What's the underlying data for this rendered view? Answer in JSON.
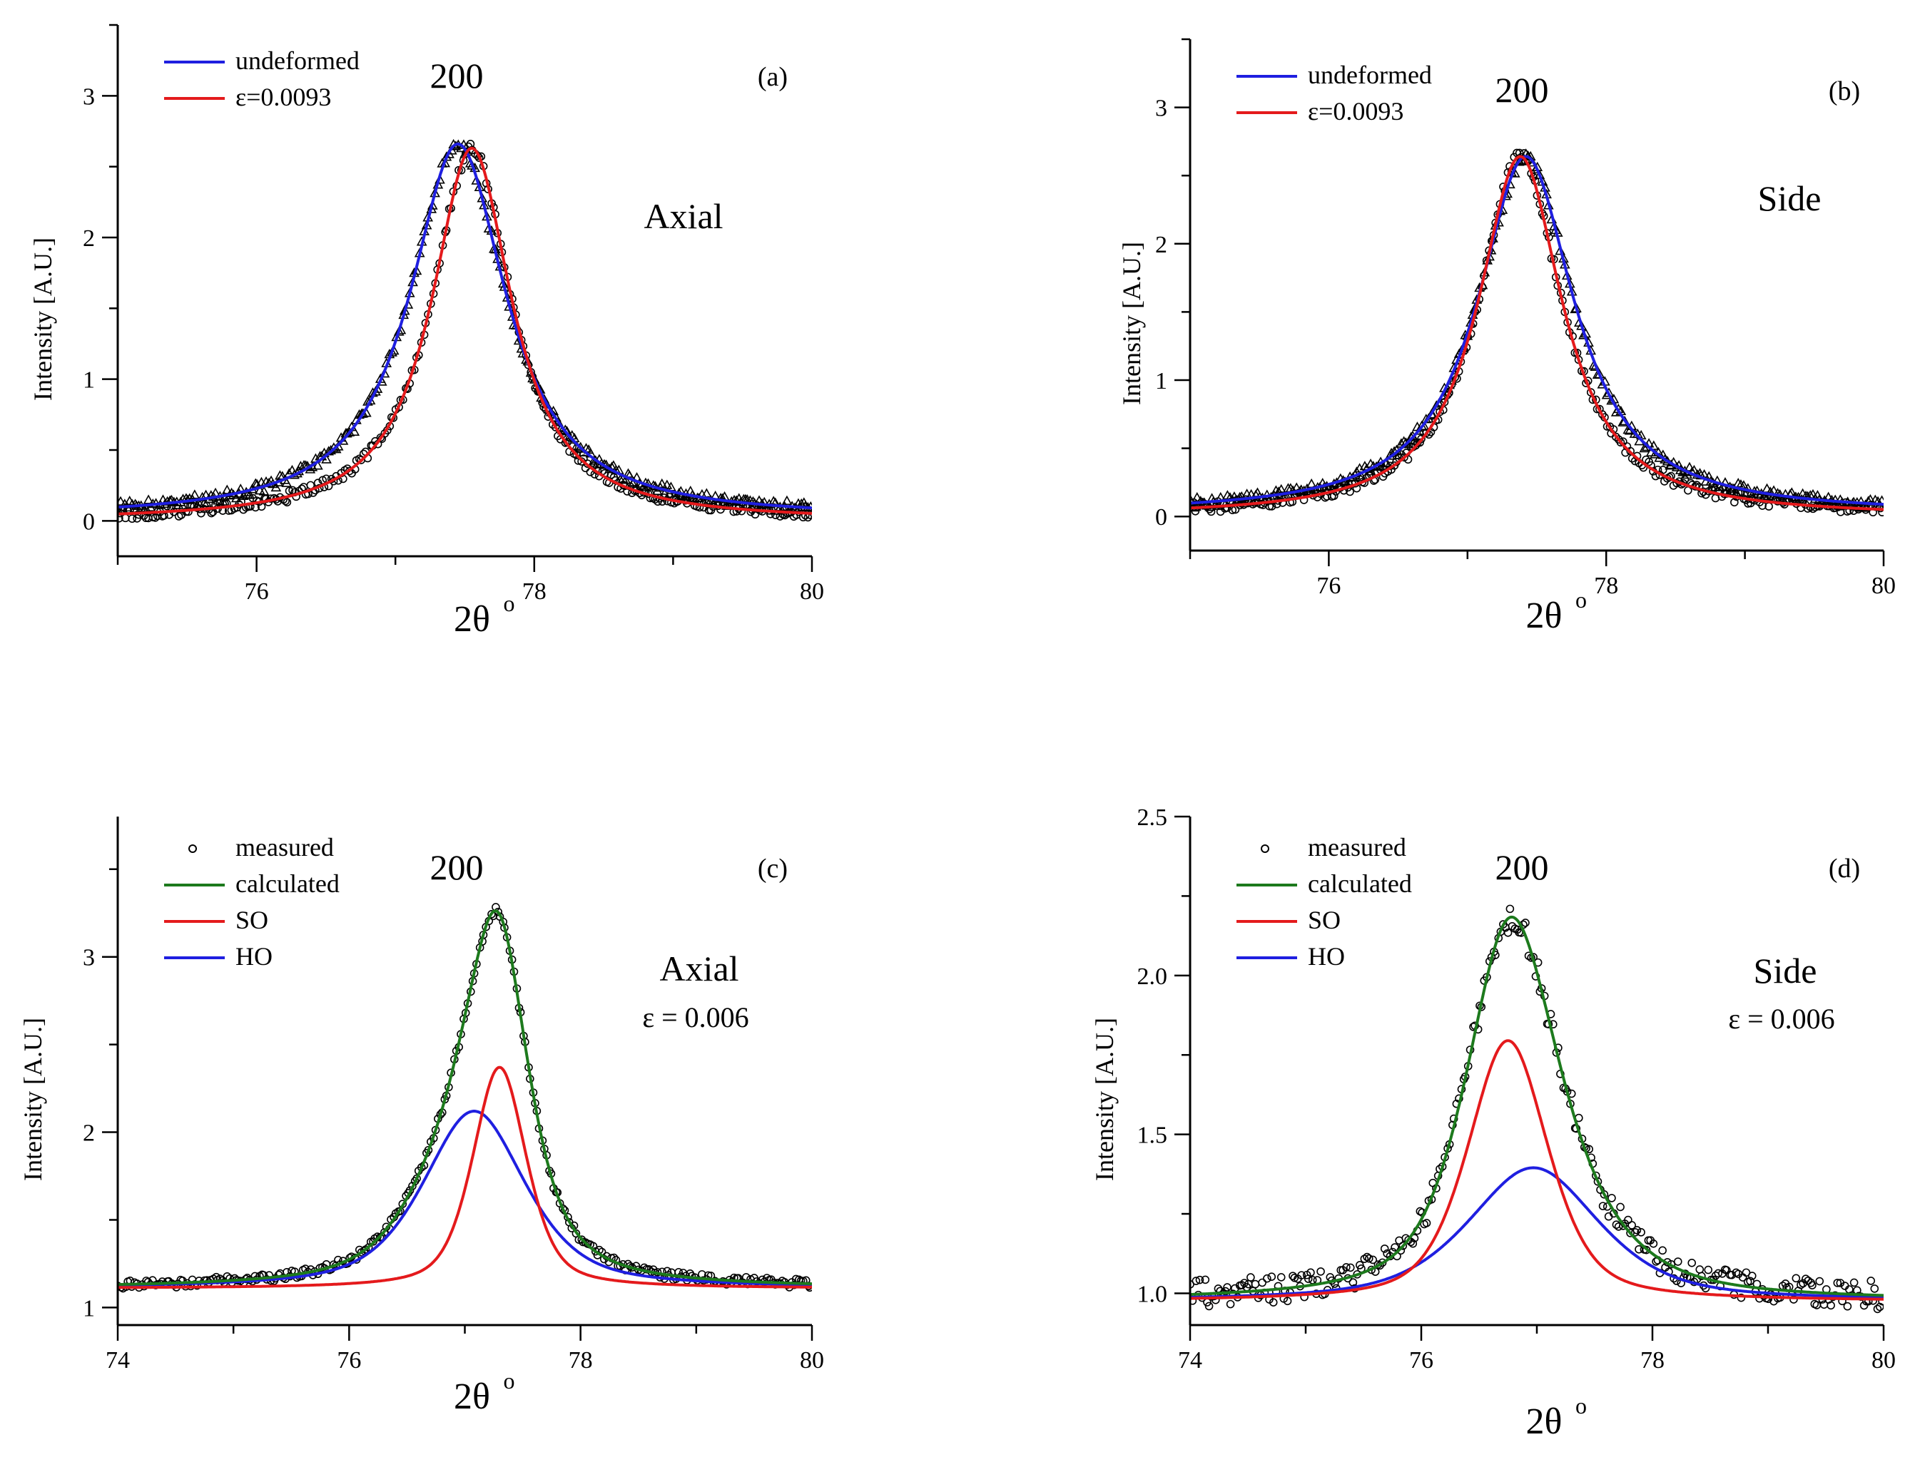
{
  "colors": {
    "undeformed": "#1f1fe0",
    "strained": "#e41a1c",
    "calculated": "#1d7a1d",
    "SO": "#e41a1c",
    "HO": "#1f1fe0",
    "markers": "#000000"
  },
  "chart_data": [
    {
      "panel": "(a)",
      "type": "line",
      "peak_label": "200",
      "direction_label": "Axial",
      "strain_label": "",
      "xlabel": "2θ",
      "xlabel_sup": "o",
      "ylabel": "Intensity [A.U.]",
      "xlim": [
        75,
        80
      ],
      "ylim": [
        -0.25,
        3.5
      ],
      "xticks": [
        76,
        78,
        80
      ],
      "yticks": [
        0,
        1,
        2,
        3
      ],
      "grid": false,
      "legend_position": "top-left",
      "legend": [
        {
          "label": "undeformed",
          "color": "#1f1fe0",
          "kind": "line"
        },
        {
          "label": "ε=0.0093",
          "color": "#e41a1c",
          "kind": "line"
        }
      ],
      "series": [
        {
          "name": "undeformed",
          "role": "fit",
          "color": "#1f1fe0",
          "markers": "triangle",
          "center": 77.45,
          "amplitude": 2.64,
          "fwhm": 0.85,
          "baseline": 0.02,
          "noise": 0.04
        },
        {
          "name": "ε=0.0093",
          "role": "fit",
          "color": "#e41a1c",
          "markers": "circle",
          "center": 77.55,
          "amplitude": 2.63,
          "fwhm": 0.7,
          "baseline": 0.0,
          "noise": 0.04
        }
      ]
    },
    {
      "panel": "(b)",
      "type": "line",
      "peak_label": "200",
      "direction_label": "Side",
      "strain_label": "",
      "xlabel": "2θ",
      "xlabel_sup": "o",
      "ylabel": "Intensity [A.U.]",
      "xlim": [
        75,
        80
      ],
      "ylim": [
        -0.25,
        3.5
      ],
      "xticks": [
        76,
        78,
        80
      ],
      "yticks": [
        0,
        1,
        2,
        3
      ],
      "grid": false,
      "legend_position": "top-left",
      "legend": [
        {
          "label": "undeformed",
          "color": "#1f1fe0",
          "kind": "line"
        },
        {
          "label": "ε=0.0093",
          "color": "#e41a1c",
          "kind": "line"
        }
      ],
      "series": [
        {
          "name": "undeformed",
          "role": "fit",
          "color": "#1f1fe0",
          "markers": "triangle",
          "center": 77.42,
          "amplitude": 2.62,
          "fwhm": 0.85,
          "baseline": 0.02,
          "noise": 0.04
        },
        {
          "name": "ε=0.0093",
          "role": "fit",
          "color": "#e41a1c",
          "markers": "circle",
          "center": 77.38,
          "amplitude": 2.64,
          "fwhm": 0.74,
          "baseline": 0.0,
          "noise": 0.04
        }
      ]
    },
    {
      "panel": "(c)",
      "type": "line",
      "peak_label": "200",
      "direction_label": "Axial",
      "strain_label": "ε = 0.006",
      "xlabel": "2θ",
      "xlabel_sup": "o",
      "ylabel": "Intensity [A.U.]",
      "xlim": [
        74,
        80
      ],
      "ylim": [
        0.9,
        3.8
      ],
      "xticks": [
        74,
        76,
        78,
        80
      ],
      "yticks": [
        1,
        2,
        3
      ],
      "grid": false,
      "legend_position": "top-left",
      "legend": [
        {
          "label": "measured",
          "color": "#000000",
          "kind": "marker"
        },
        {
          "label": "calculated",
          "color": "#1d7a1d",
          "kind": "line"
        },
        {
          "label": "SO",
          "color": "#e41a1c",
          "kind": "line"
        },
        {
          "label": "HO",
          "color": "#1f1fe0",
          "kind": "line"
        }
      ],
      "baseline": 1.11,
      "components": [
        {
          "name": "SO",
          "color": "#e41a1c",
          "center": 77.3,
          "amplitude": 1.26,
          "fwhm": 0.55
        },
        {
          "name": "HO",
          "color": "#1f1fe0",
          "center": 77.08,
          "amplitude": 1.01,
          "fwhm": 1.05
        }
      ],
      "measured_noise": 0.025
    },
    {
      "panel": "(d)",
      "type": "line",
      "peak_label": "200",
      "direction_label": "Side",
      "strain_label": "ε = 0.006",
      "xlabel": "2θ",
      "xlabel_sup": "o",
      "ylabel": "Intensity [A.U.]",
      "xlim": [
        74,
        80
      ],
      "ylim": [
        0.9,
        2.5
      ],
      "xticks": [
        74,
        76,
        78,
        80
      ],
      "yticks": [
        1.0,
        1.5,
        2.0,
        2.5
      ],
      "grid": false,
      "legend_position": "top-left",
      "legend": [
        {
          "label": "measured",
          "color": "#000000",
          "kind": "marker"
        },
        {
          "label": "calculated",
          "color": "#1d7a1d",
          "kind": "line"
        },
        {
          "label": "SO",
          "color": "#e41a1c",
          "kind": "line"
        },
        {
          "label": "HO",
          "color": "#1f1fe0",
          "kind": "line"
        }
      ],
      "baseline": 0.975,
      "components": [
        {
          "name": "SO",
          "color": "#e41a1c",
          "center": 76.75,
          "amplitude": 0.82,
          "fwhm": 0.82
        },
        {
          "name": "HO",
          "color": "#1f1fe0",
          "center": 76.97,
          "amplitude": 0.42,
          "fwhm": 1.35
        }
      ],
      "measured_noise": 0.045
    }
  ]
}
